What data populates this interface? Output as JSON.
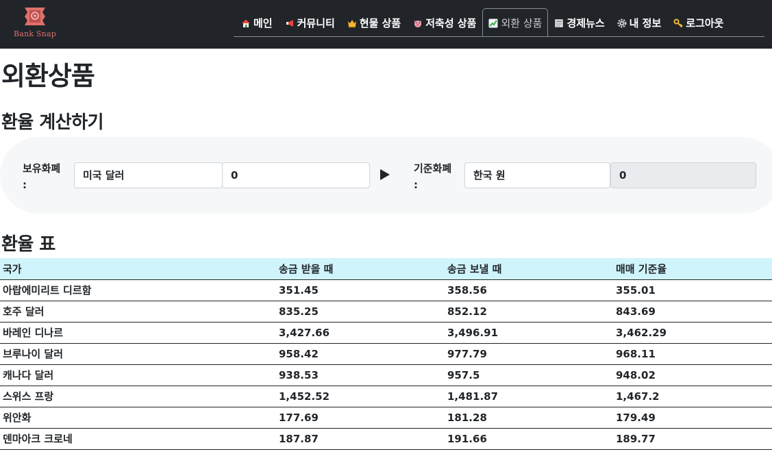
{
  "brand": {
    "name": "Bank Snap"
  },
  "nav": [
    {
      "label": "메인",
      "icon": "house-icon"
    },
    {
      "label": "커뮤니티",
      "icon": "megaphone-icon"
    },
    {
      "label": "현물 상품",
      "icon": "crown-icon"
    },
    {
      "label": "저축성 상품",
      "icon": "pig-icon"
    },
    {
      "label": "외환 상품",
      "icon": "chart-increasing-icon",
      "active": true
    },
    {
      "label": "경제뉴스",
      "icon": "newspaper-icon"
    },
    {
      "label": "내 정보",
      "icon": "gear-icon"
    },
    {
      "label": "로그아웃",
      "icon": "key-icon"
    }
  ],
  "page": {
    "title": "외환상품",
    "calc_title": "환율 계산하기",
    "table_title": "환율 표"
  },
  "calculator": {
    "from_label": "보유화폐",
    "from_colon": ":",
    "from_currency": "미국 달러",
    "from_amount": "0",
    "to_label": "기준화폐",
    "to_colon": ":",
    "to_currency": "한국 원",
    "to_amount": "0"
  },
  "rate_table": {
    "headers": [
      "국가",
      "송금 받을 때",
      "송금 보낼 때",
      "매매 기준율"
    ],
    "rows": [
      [
        "아랍에미리트 디르함",
        "351.45",
        "358.56",
        "355.01"
      ],
      [
        "호주 달러",
        "835.25",
        "852.12",
        "843.69"
      ],
      [
        "바레인 디나르",
        "3,427.66",
        "3,496.91",
        "3,462.29"
      ],
      [
        "브루나이 달러",
        "958.42",
        "977.79",
        "968.11"
      ],
      [
        "캐나다 달러",
        "938.53",
        "957.5",
        "948.02"
      ],
      [
        "스위스 프랑",
        "1,452.52",
        "1,481.87",
        "1,467.2"
      ],
      [
        "위안화",
        "177.69",
        "181.28",
        "179.49"
      ],
      [
        "덴마아크 크로네",
        "187.87",
        "191.66",
        "189.77"
      ]
    ]
  },
  "colors": {
    "navbar": "#212529",
    "table_header": "#cff4fc",
    "calc_background": "#f6f7f8",
    "brand": "#e0706c"
  }
}
